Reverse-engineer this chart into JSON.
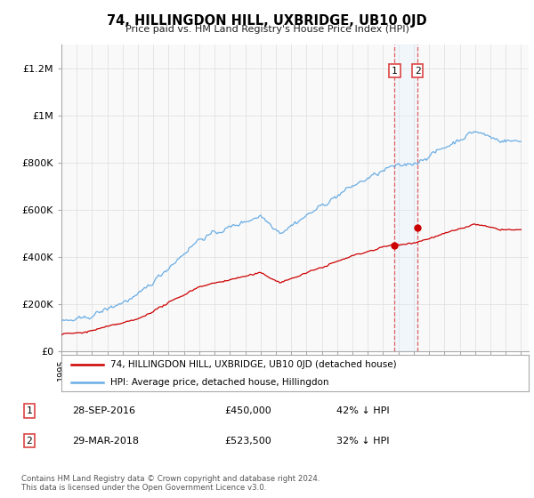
{
  "title": "74, HILLINGDON HILL, UXBRIDGE, UB10 0JD",
  "subtitle": "Price paid vs. HM Land Registry's House Price Index (HPI)",
  "ylim": [
    0,
    1300000
  ],
  "xlim_left": 1995.0,
  "xlim_right": 2025.5,
  "hpi_color": "#6aade4",
  "hpi_shade_color": "#ddeeff",
  "price_color": "#cc0000",
  "vline_color": "#dd4444",
  "sale1_date": "28-SEP-2016",
  "sale1_price": 450000,
  "sale1_label": "42% ↓ HPI",
  "sale1_x": 2016.75,
  "sale2_date": "29-MAR-2018",
  "sale2_price": 523500,
  "sale2_label": "32% ↓ HPI",
  "sale2_x": 2018.25,
  "legend_line1": "74, HILLINGDON HILL, UXBRIDGE, UB10 0JD (detached house)",
  "legend_line2": "HPI: Average price, detached house, Hillingdon",
  "footnote": "Contains HM Land Registry data © Crown copyright and database right 2024.\nThis data is licensed under the Open Government Licence v3.0.",
  "background_color": "#ffffff",
  "plot_bg_color": "#f9f9f9",
  "grid_color": "#dddddd",
  "noise_seed": 42,
  "hpi_noise_scale": 8000,
  "price_noise_scale": 3000
}
